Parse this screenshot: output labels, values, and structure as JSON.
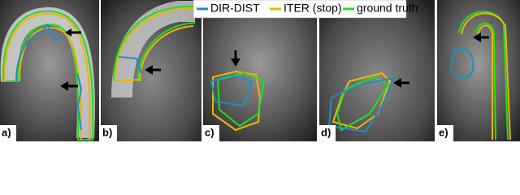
{
  "legend": [
    {
      "label": "DIR-DIST",
      "color": "#1f8fbf"
    },
    {
      "label": "ITER (stop)",
      "color": "#f0b400"
    },
    {
      "label": "ground truth",
      "color": "#22dd22"
    }
  ],
  "panels": [
    {
      "label": "a)"
    },
    {
      "label": "b)"
    },
    {
      "label": "c)"
    },
    {
      "label": "d)"
    },
    {
      "label": "e)"
    }
  ]
}
